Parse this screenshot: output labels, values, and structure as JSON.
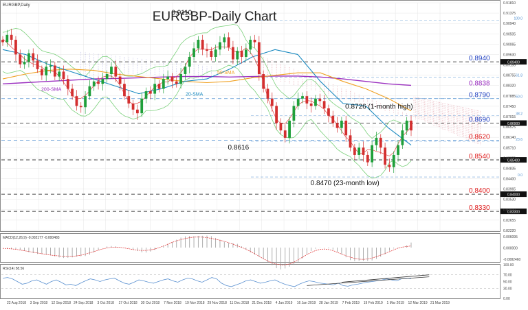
{
  "header": {
    "symbol_label": "EURGBP,Daily",
    "title": "EURGBP-Daily Chart"
  },
  "colors": {
    "grid": "#e6e6e6",
    "candle_up": "#1f9f3a",
    "candle_down": "#d32f2f",
    "sma200": "#9b30c0",
    "sma50": "#f0a020",
    "sma20": "#1b8ac0",
    "ema_fast": "#e04040",
    "bollinger": "#7ad07a",
    "cloud": "#7a7acc",
    "level_black": "#111111",
    "level_blue": "#2040c0",
    "level_red": "#e02020",
    "fib": "#4d8ecf",
    "rsi_line": "#5a90d0",
    "macd_hist": "#999999",
    "macd_signal": "#e03030"
  },
  "chart_data": {
    "type": "line",
    "title": "EURGBP-Daily Chart",
    "xlabel": "",
    "ylabel": "",
    "ylim": [
      0.8252,
      0.9181
    ],
    "x_labels": [
      "22 Aug 2018",
      "3 Sep 2018",
      "12 Sep 2018",
      "24 Sep 2018",
      "3 Oct 2018",
      "17 Oct 2018",
      "30 Oct 2018",
      "7 Nov 2018",
      "19 Nov 2018",
      "29 Nov 2018",
      "11 Dec 2018",
      "21 Dec 2018",
      "4 Jan 2019",
      "16 Jan 2019",
      "28 Jan 2019",
      "7 Feb 2019",
      "19 Feb 2019",
      "1 Mar 2019",
      "12 Mar 2019",
      "21 Mar 2019"
    ],
    "y_ticks": [
      "0.91810",
      "0.91375",
      "0.90940",
      "0.90505",
      "0.90065",
      "0.89630",
      "0.89195",
      "0.88755",
      "0.88320",
      "0.87885",
      "0.87450",
      "0.87015",
      "0.86575",
      "0.86140",
      "0.85710",
      "0.85270",
      "0.84835",
      "0.84400",
      "0.83965",
      "0.83530",
      "0.83090",
      "0.82655",
      "0.82220"
    ],
    "axis_markers": [
      "0.89400",
      "0.86900",
      "0.85400",
      "0.84000",
      "0.83300"
    ],
    "series_close_estimate": [
      0.902,
      0.905,
      0.903,
      0.897,
      0.893,
      0.894,
      0.8975,
      0.8945,
      0.891,
      0.8885,
      0.892,
      0.8925,
      0.888,
      0.89,
      0.887,
      0.883,
      0.88,
      0.876,
      0.8755,
      0.88,
      0.884,
      0.886,
      0.885,
      0.887,
      0.889,
      0.892,
      0.888,
      0.885,
      0.88,
      0.877,
      0.8745,
      0.873,
      0.879,
      0.882,
      0.881,
      0.885,
      0.883,
      0.887,
      0.888,
      0.886,
      0.885,
      0.889,
      0.892,
      0.896,
      0.8995,
      0.903,
      0.899,
      0.8985,
      0.896,
      0.899,
      0.902,
      0.904,
      0.9,
      0.895,
      0.8985,
      0.896,
      0.899,
      0.903,
      0.902,
      0.889,
      0.883,
      0.879,
      0.876,
      0.869,
      0.866,
      0.863,
      0.87,
      0.876,
      0.879,
      0.88,
      0.877,
      0.876,
      0.879,
      0.878,
      0.875,
      0.872,
      0.869,
      0.867,
      0.87,
      0.864,
      0.859,
      0.856,
      0.859,
      0.856,
      0.853,
      0.86,
      0.863,
      0.859,
      0.852,
      0.851,
      0.856,
      0.86,
      0.866,
      0.87,
      0.866
    ],
    "sma200_estimate": [
      0.885,
      0.8855,
      0.886,
      0.8865,
      0.887,
      0.8872,
      0.8875,
      0.8878,
      0.888,
      0.888,
      0.8878,
      0.888,
      0.8882,
      0.8882,
      0.8878,
      0.887,
      0.886,
      0.885,
      0.8844
    ],
    "sma50_estimate": [
      0.887,
      0.889,
      0.8905,
      0.891,
      0.8905,
      0.889,
      0.888,
      0.887,
      0.886,
      0.8855,
      0.886,
      0.8875,
      0.8885,
      0.8895,
      0.8895,
      0.886,
      0.883,
      0.879,
      0.874
    ],
    "sma20_estimate": [
      0.899,
      0.897,
      0.893,
      0.89,
      0.887,
      0.884,
      0.881,
      0.883,
      0.886,
      0.887,
      0.891,
      0.896,
      0.899,
      0.897,
      0.886,
      0.877,
      0.876,
      0.867,
      0.86
    ],
    "annotations": [
      {
        "text": "0.9110",
        "x_index": 42,
        "value": 0.911
      },
      {
        "text": "0.8616",
        "x_index": 55,
        "value": 0.8616
      },
      {
        "text": "0.8726 (1-month high)",
        "x_index": 82,
        "value": 0.8726
      },
      {
        "text": "0.8470 (23-month low)",
        "x_index": 74,
        "value": 0.847
      }
    ],
    "levels": [
      {
        "text": "0.8940",
        "value": 0.894,
        "color": "blue"
      },
      {
        "text": "0.8838",
        "value": 0.8838,
        "color": "purple"
      },
      {
        "text": "0.8790",
        "value": 0.879,
        "color": "blue"
      },
      {
        "text": "0.8690",
        "value": 0.869,
        "color": "blue"
      },
      {
        "text": "0.8620",
        "value": 0.862,
        "color": "red"
      },
      {
        "text": "0.8540",
        "value": 0.854,
        "color": "red"
      },
      {
        "text": "0.8400",
        "value": 0.84,
        "color": "red"
      },
      {
        "text": "0.8330",
        "value": 0.833,
        "color": "red"
      }
    ],
    "fib_labels": [
      "100.0",
      "61.8",
      "50.0",
      "38.2",
      "23.6",
      "0.0"
    ],
    "sma_labels": [
      "200-SMA",
      "50-SMA",
      "20-SMA"
    ]
  },
  "indicators": {
    "macd": {
      "label": "MACD(12,26,9) -0.002177 -0.000483",
      "y_ticks": [
        "0.006095",
        "0.000000",
        "-0.0082460"
      ]
    },
    "rsi": {
      "label": "RSI(14) 58.56",
      "y_ticks": [
        "100.00",
        "70.00",
        "50.00",
        "30.00",
        "0.00"
      ],
      "values_estimate": [
        60,
        62,
        58,
        50,
        42,
        45,
        52,
        55,
        48,
        42,
        50,
        55,
        48,
        40,
        42,
        38,
        45,
        52,
        58,
        55,
        50,
        55,
        58,
        60,
        52,
        45,
        42,
        48,
        55,
        52,
        48,
        45,
        50,
        55,
        58,
        52,
        48,
        55,
        60,
        58,
        52,
        48,
        55,
        62,
        58,
        45,
        38,
        35,
        40,
        45,
        52,
        55,
        50,
        45,
        48,
        52,
        55,
        48,
        42,
        38,
        35,
        42,
        48,
        52,
        50,
        46,
        44,
        42,
        40,
        45,
        38,
        36,
        40,
        42,
        45,
        48,
        50,
        52,
        55,
        58,
        55,
        52,
        58,
        60,
        58.56
      ]
    }
  }
}
